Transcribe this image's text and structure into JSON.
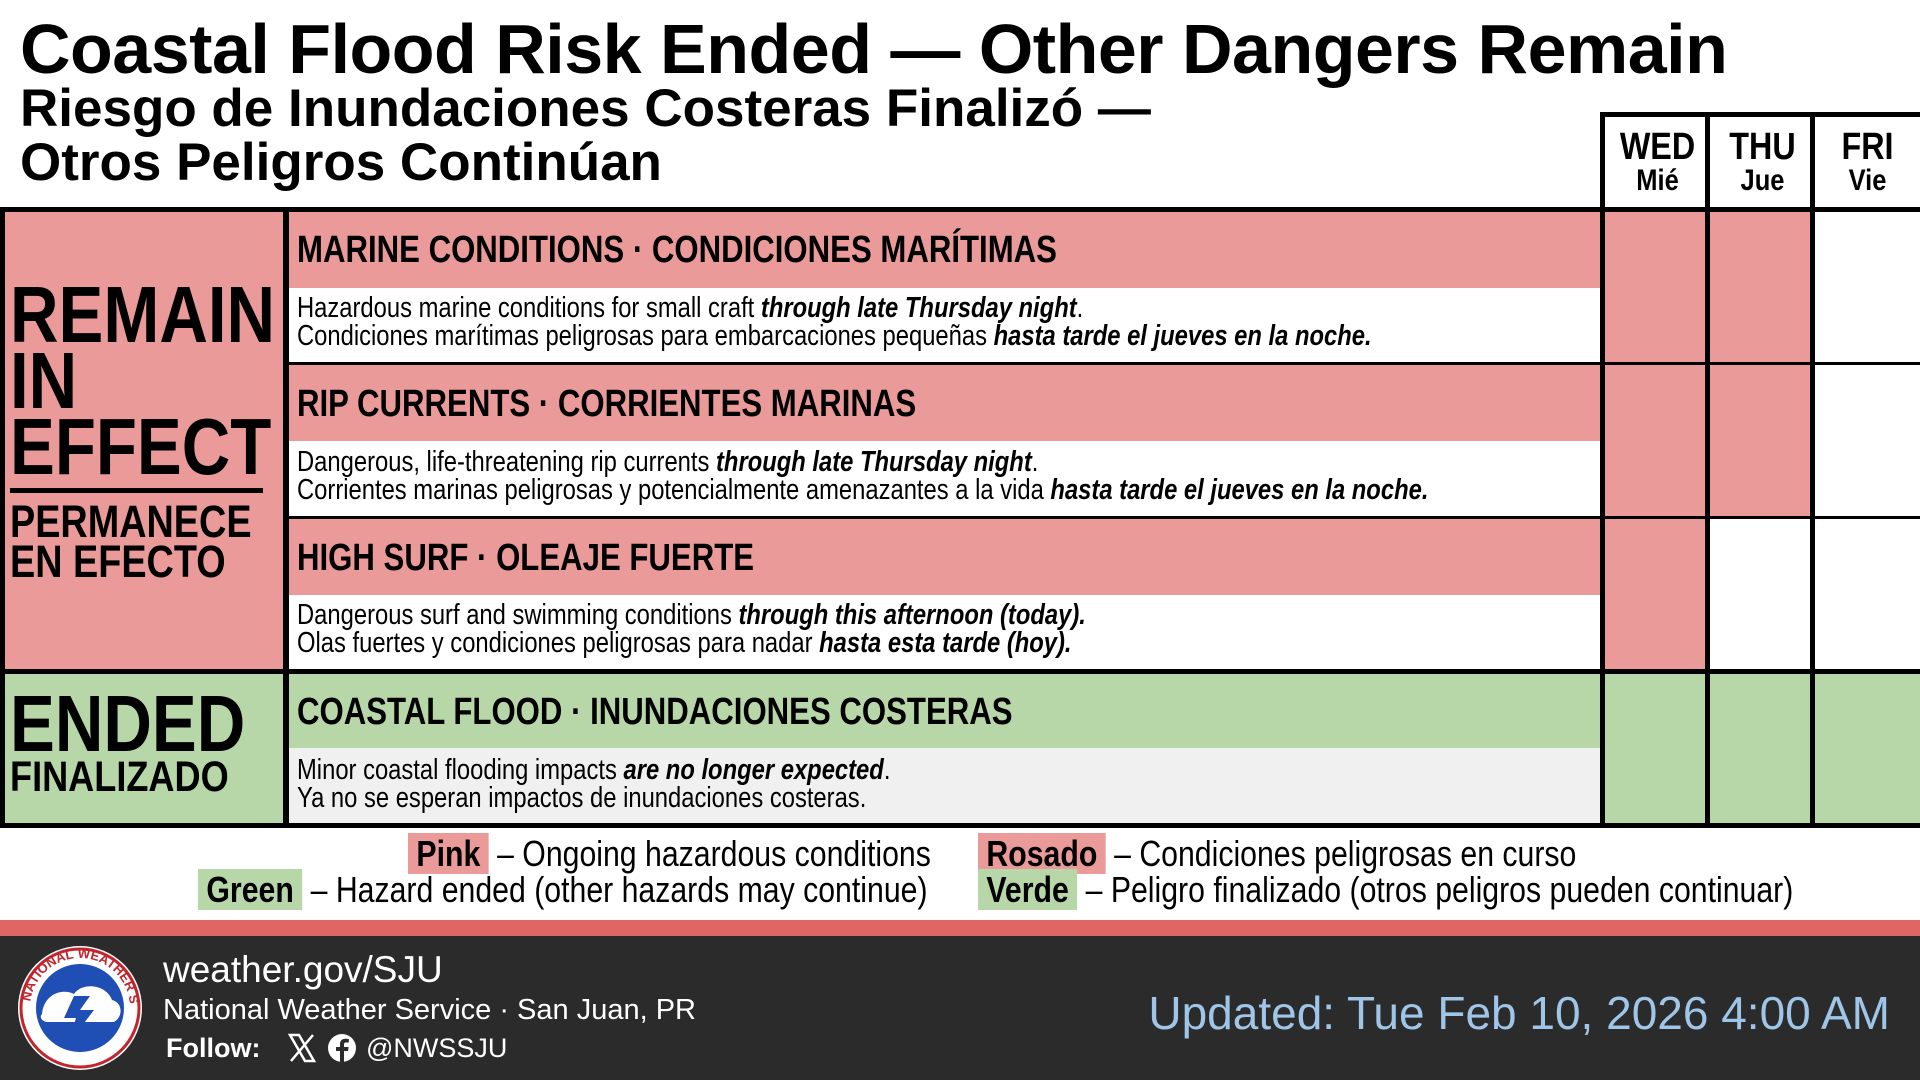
{
  "header": {
    "title": "Coastal Flood Risk Ended — Other Dangers Remain",
    "subtitle_line1": "Riesgo de Inundaciones Costeras Finalizó —",
    "subtitle_line2": "Otros Peligros Continúan"
  },
  "days": [
    {
      "en": "WED",
      "es": "Mié"
    },
    {
      "en": "THU",
      "es": "Jue"
    },
    {
      "en": "FRI",
      "es": "Vie"
    }
  ],
  "groups": {
    "remain": {
      "line1": "REMAIN",
      "line2": "IN",
      "line3": "EFFECT",
      "sub_line1": "PERMANECE",
      "sub_line2": "EN EFECTO"
    },
    "ended": {
      "label": "ENDED",
      "sub": "FINALIZADO"
    }
  },
  "hazards": [
    {
      "title": "MARINE CONDITIONS · CONDICIONES MARÍTIMAS",
      "en_text": "Hazardous marine conditions for small craft ",
      "en_emph": "through late Thursday night",
      "en_end": ".",
      "es_text": "Condiciones marítimas peligrosas para embarcaciones pequeñas ",
      "es_emph": "hasta tarde el jueves en la noche.",
      "status": "ongoing",
      "days_active": [
        true,
        true,
        false
      ]
    },
    {
      "title": "RIP CURRENTS · CORRIENTES MARINAS",
      "en_text": "Dangerous, life-threatening rip currents ",
      "en_emph": "through late Thursday night",
      "en_end": ".",
      "es_text": "Corrientes marinas peligrosas y potencialmente amenazantes a la vida ",
      "es_emph": "hasta tarde el jueves en la noche.",
      "status": "ongoing",
      "days_active": [
        true,
        true,
        false
      ]
    },
    {
      "title": "HIGH SURF · OLEAJE FUERTE",
      "en_text": "Dangerous surf and swimming conditions ",
      "en_emph": "through this afternoon (today).",
      "en_end": "",
      "es_text": "Olas fuertes y condiciones peligrosas para nadar ",
      "es_emph": "hasta esta tarde (hoy).",
      "status": "ongoing",
      "days_active": [
        true,
        false,
        false
      ]
    },
    {
      "title": "COASTAL FLOOD · INUNDACIONES COSTERAS",
      "en_text": "Minor coastal flooding impacts ",
      "en_emph": "are no longer expected",
      "en_end": ".",
      "es_text": "Ya no se esperan impactos de inundaciones costeras.",
      "es_emph": "",
      "status": "ended",
      "days_active": [
        true,
        true,
        true
      ]
    }
  ],
  "legend": {
    "pink_en": "Pink",
    "pink_en_desc": "– Ongoing hazardous conditions",
    "green_en": "Green",
    "green_en_desc": "– Hazard ended (other hazards may continue)",
    "pink_es": "Rosado",
    "pink_es_desc": "– Condiciones peligrosas en curso",
    "green_es": "Verde",
    "green_es_desc": "– Peligro finalizado (otros peligros pueden continuar)"
  },
  "footer": {
    "url": "weather.gov/SJU",
    "org": "National Weather Service · San Juan, PR",
    "follow_label": "Follow:",
    "handle": "@NWSSJU",
    "updated": "Updated: Tue Feb 10, 2026 4:00 AM",
    "logo_text": "NATIONAL WEATHER SERVICE",
    "icons": [
      "x-icon",
      "facebook-icon"
    ]
  },
  "colors": {
    "pink": "#ea9a99",
    "green": "#b7d7a8",
    "footer_bg": "#2b2b2b",
    "accent_bar": "#e06666",
    "updated_text": "#9fc5e8"
  }
}
